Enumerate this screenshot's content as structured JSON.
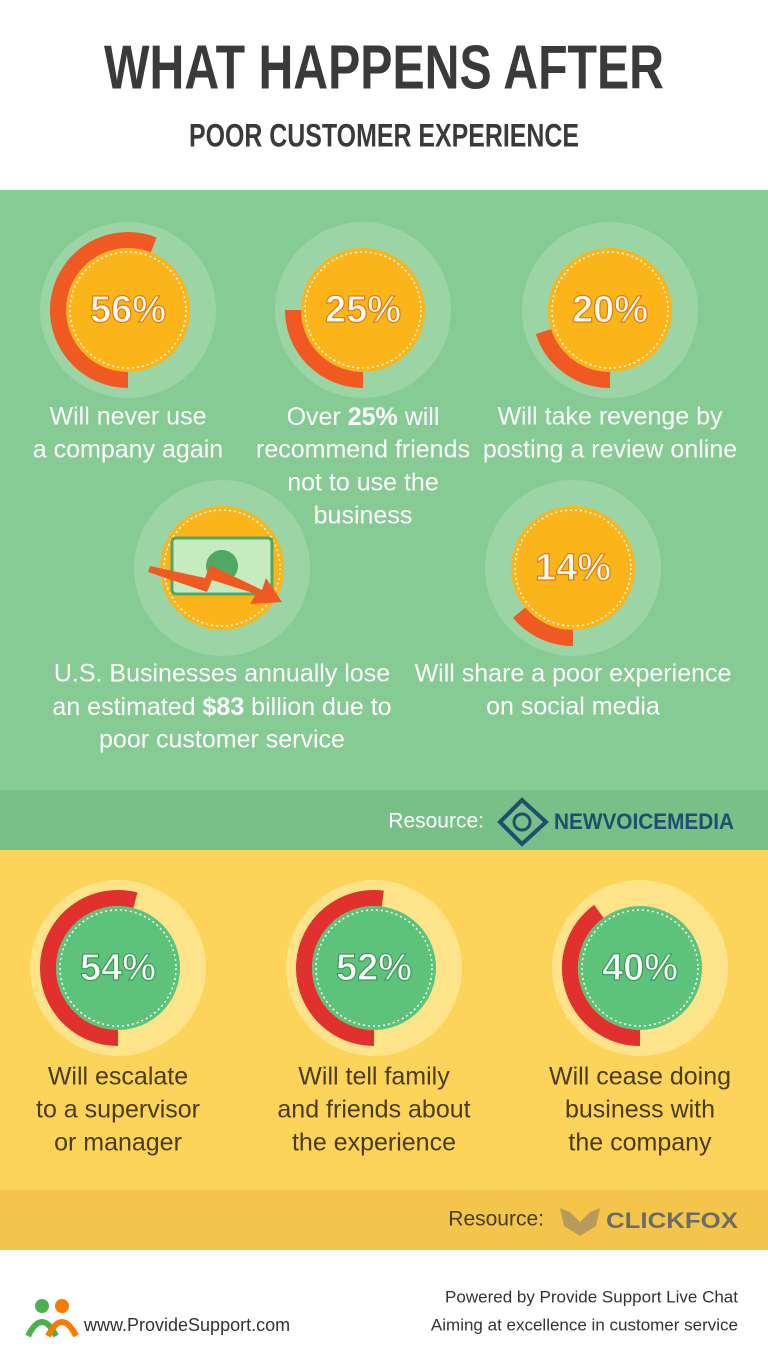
{
  "header": {
    "title": "WHAT HAPPENS AFTER",
    "subtitle": "POOR CUSTOMER EXPERIENCE"
  },
  "green_section": {
    "stats": [
      {
        "value": 56,
        "value_label": "56%",
        "caption": [
          "Will never use",
          "a company again"
        ]
      },
      {
        "value": 25,
        "value_label": "25%",
        "caption": [
          {
            "before": "Over ",
            "bold": "25%",
            "after": " will"
          },
          "recommend friends",
          "not to use the",
          "business"
        ]
      },
      {
        "value": 20,
        "value_label": "20%",
        "caption": [
          "Will take revenge by",
          "posting a review online"
        ]
      },
      {
        "value": 14,
        "value_label": "14%",
        "caption": [
          "Will share a poor experience",
          "on social media"
        ]
      }
    ],
    "loss": {
      "caption": [
        "U.S. Businesses annually lose",
        {
          "before": "an estimated ",
          "bold": "$83",
          "after": " billion due to"
        },
        "poor customer service"
      ]
    },
    "resource_label": "Resource:",
    "resource": "NEWVOICEMEDIA"
  },
  "yellow_section": {
    "stats": [
      {
        "value": 54,
        "value_label": "54%",
        "caption": [
          "Will escalate",
          "to a supervisor",
          "or manager"
        ]
      },
      {
        "value": 52,
        "value_label": "52%",
        "caption": [
          "Will tell family",
          "and friends about",
          "the experience"
        ]
      },
      {
        "value": 40,
        "value_label": "40%",
        "caption": [
          "Will cease doing",
          "business with",
          "the company"
        ]
      }
    ],
    "resource_label": "Resource:",
    "resource": "CLICKFOX"
  },
  "footer": {
    "url": "www.ProvideSupport.com",
    "lines": [
      "Powered by Provide Support Live Chat",
      "Aiming at excellence in customer service"
    ]
  }
}
